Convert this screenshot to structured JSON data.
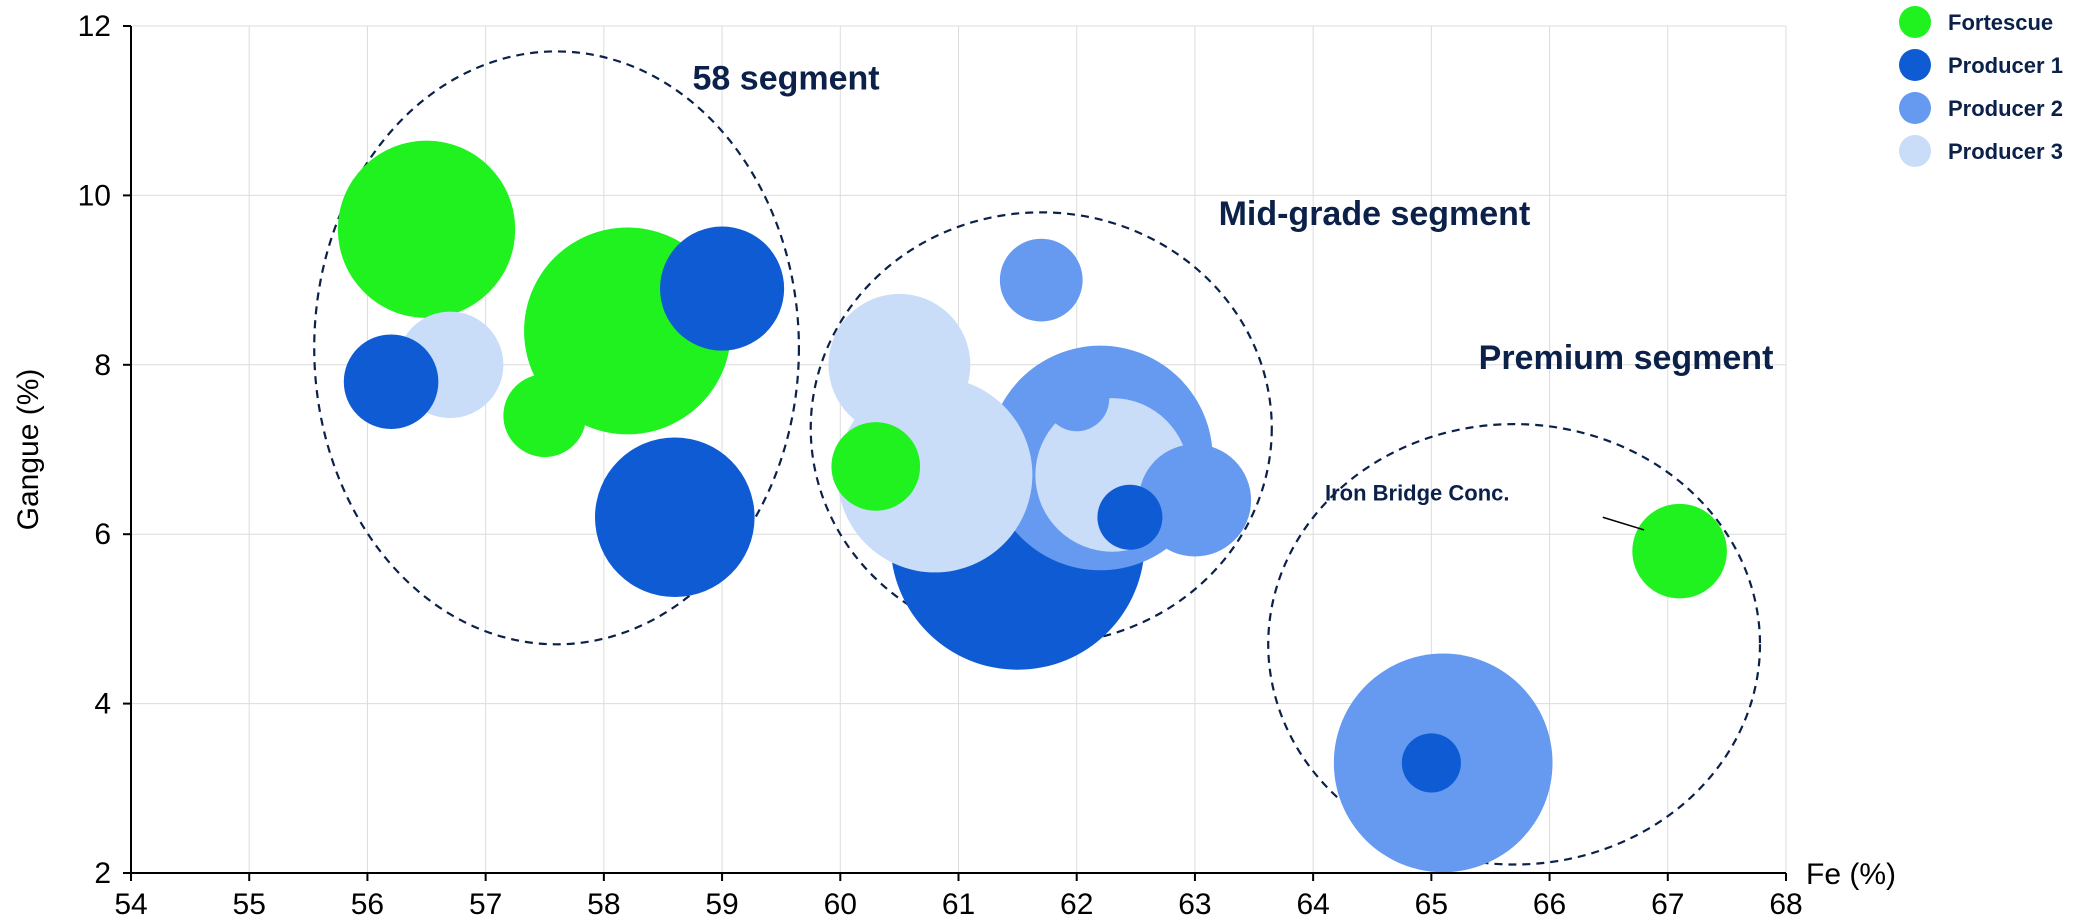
{
  "chart_data": {
    "type": "scatter",
    "subtype": "bubble",
    "title": "",
    "xlabel": "Fe (%)",
    "ylabel": "Gangue (%)",
    "xlim": [
      54,
      68
    ],
    "ylim": [
      2,
      12
    ],
    "x_ticks": [
      54,
      55,
      56,
      57,
      58,
      59,
      60,
      61,
      62,
      63,
      64,
      65,
      66,
      67,
      68
    ],
    "y_ticks": [
      2,
      4,
      6,
      8,
      10,
      12
    ],
    "grid": true,
    "legend_position": "top-right",
    "series": [
      {
        "name": "Fortescue",
        "color": "#1ff21f",
        "points": [
          {
            "x": 56.5,
            "y": 9.6,
            "r": 1.5
          },
          {
            "x": 58.2,
            "y": 8.4,
            "r": 1.75
          },
          {
            "x": 57.5,
            "y": 7.4,
            "r": 0.7
          },
          {
            "x": 60.3,
            "y": 6.8,
            "r": 0.75
          },
          {
            "x": 67.1,
            "y": 5.8,
            "r": 0.8
          }
        ]
      },
      {
        "name": "Producer 1",
        "color": "#0f5bd4",
        "points": [
          {
            "x": 56.2,
            "y": 7.8,
            "r": 0.8
          },
          {
            "x": 59.0,
            "y": 8.9,
            "r": 1.05
          },
          {
            "x": 58.6,
            "y": 6.2,
            "r": 1.35
          },
          {
            "x": 61.5,
            "y": 5.9,
            "r": 2.15
          },
          {
            "x": 62.45,
            "y": 6.2,
            "r": 0.55
          },
          {
            "x": 65.0,
            "y": 3.3,
            "r": 0.5
          }
        ]
      },
      {
        "name": "Producer 2",
        "color": "#6699f0",
        "points": [
          {
            "x": 61.7,
            "y": 9.0,
            "r": 0.7
          },
          {
            "x": 62.2,
            "y": 6.9,
            "r": 1.9
          },
          {
            "x": 62.0,
            "y": 7.6,
            "r": 0.55
          },
          {
            "x": 63.0,
            "y": 6.4,
            "r": 0.95
          },
          {
            "x": 65.1,
            "y": 3.3,
            "r": 1.85
          }
        ]
      },
      {
        "name": "Producer 3",
        "color": "#c9dcf8",
        "points": [
          {
            "x": 56.7,
            "y": 8.0,
            "r": 0.9
          },
          {
            "x": 60.5,
            "y": 8.0,
            "r": 1.2
          },
          {
            "x": 60.8,
            "y": 6.7,
            "r": 1.65
          },
          {
            "x": 62.3,
            "y": 6.7,
            "r": 1.3
          }
        ]
      }
    ],
    "segments": [
      {
        "label": "58 segment",
        "cx": 57.6,
        "cy": 8.2,
        "rx": 2.05,
        "ry": 3.5
      },
      {
        "label": "Mid-grade segment",
        "cx": 61.7,
        "cy": 7.25,
        "rx": 1.95,
        "ry": 2.55
      },
      {
        "label": "Premium segment",
        "cx": 65.7,
        "cy": 4.7,
        "rx": 2.08,
        "ry": 2.6
      }
    ],
    "annotations": [
      {
        "text": "Iron Bridge Conc.",
        "x": 67.1,
        "y": 5.8
      }
    ]
  }
}
